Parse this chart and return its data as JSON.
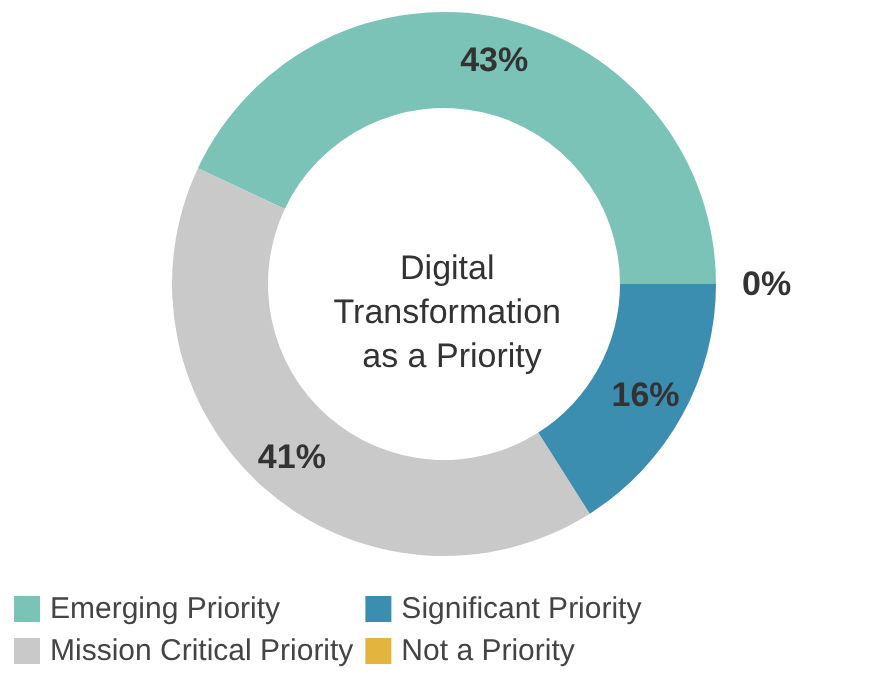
{
  "chart_data": {
    "type": "donut",
    "title": "Digital Transformation as a Priority",
    "categories": [
      "Emerging Priority",
      "Mission Critical Priority",
      "Significant Priority",
      "Not a Priority"
    ],
    "values": [
      43,
      41,
      16,
      0
    ],
    "colors": [
      "#7cc3b7",
      "#c9c9c9",
      "#3b8eb0",
      "#e3b53f"
    ],
    "value_labels": [
      "43%",
      "41%",
      "16%",
      "0%"
    ],
    "legend": "bottom"
  }
}
